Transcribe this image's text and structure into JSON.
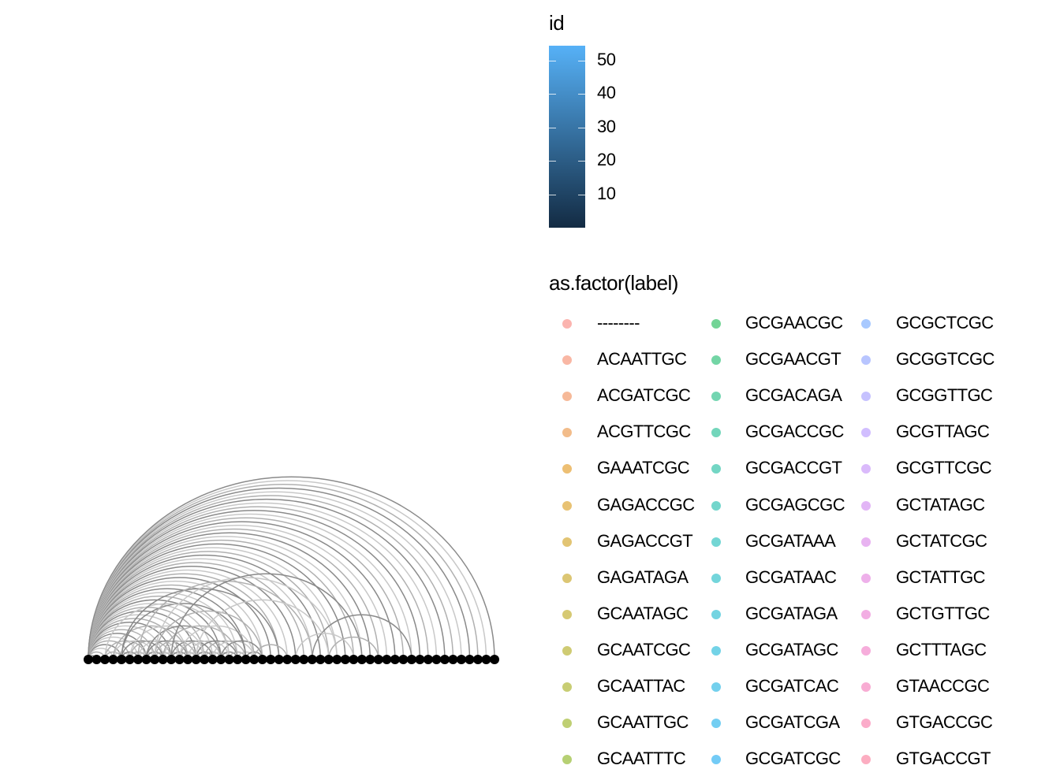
{
  "chart_data": {
    "type": "arc",
    "n_nodes": 50,
    "arcs": [
      [
        1,
        2
      ],
      [
        1,
        3
      ],
      [
        1,
        4
      ],
      [
        1,
        5
      ],
      [
        1,
        6
      ],
      [
        1,
        7
      ],
      [
        1,
        8
      ],
      [
        1,
        9
      ],
      [
        1,
        10
      ],
      [
        1,
        11
      ],
      [
        1,
        12
      ],
      [
        1,
        13
      ],
      [
        1,
        14
      ],
      [
        1,
        15
      ],
      [
        1,
        16
      ],
      [
        1,
        17
      ],
      [
        1,
        18
      ],
      [
        1,
        19
      ],
      [
        1,
        20
      ],
      [
        1,
        21
      ],
      [
        1,
        22
      ],
      [
        1,
        23
      ],
      [
        1,
        24
      ],
      [
        1,
        25
      ],
      [
        1,
        26
      ],
      [
        1,
        27
      ],
      [
        1,
        28
      ],
      [
        1,
        29
      ],
      [
        1,
        30
      ],
      [
        1,
        31
      ],
      [
        1,
        32
      ],
      [
        1,
        33
      ],
      [
        1,
        34
      ],
      [
        1,
        35
      ],
      [
        1,
        36
      ],
      [
        1,
        37
      ],
      [
        1,
        38
      ],
      [
        1,
        39
      ],
      [
        1,
        40
      ],
      [
        1,
        41
      ],
      [
        1,
        42
      ],
      [
        1,
        43
      ],
      [
        1,
        44
      ],
      [
        1,
        45
      ],
      [
        1,
        46
      ],
      [
        1,
        47
      ],
      [
        1,
        48
      ],
      [
        1,
        49
      ],
      [
        1,
        50
      ],
      [
        3,
        5
      ],
      [
        4,
        6
      ],
      [
        5,
        7
      ],
      [
        6,
        8
      ],
      [
        7,
        9
      ],
      [
        8,
        10
      ],
      [
        9,
        11
      ],
      [
        10,
        12
      ],
      [
        11,
        13
      ],
      [
        12,
        14
      ],
      [
        13,
        15
      ],
      [
        14,
        16
      ],
      [
        15,
        17
      ],
      [
        16,
        18
      ],
      [
        17,
        19
      ],
      [
        18,
        20
      ],
      [
        19,
        21
      ],
      [
        20,
        22
      ],
      [
        3,
        8
      ],
      [
        4,
        9
      ],
      [
        5,
        10
      ],
      [
        6,
        11
      ],
      [
        7,
        12
      ],
      [
        8,
        13
      ],
      [
        9,
        14
      ],
      [
        10,
        15
      ],
      [
        11,
        16
      ],
      [
        12,
        17
      ],
      [
        13,
        18
      ],
      [
        14,
        19
      ],
      [
        15,
        20
      ],
      [
        16,
        21
      ],
      [
        17,
        22
      ],
      [
        4,
        13
      ],
      [
        6,
        15
      ],
      [
        8,
        17
      ],
      [
        10,
        19
      ],
      [
        12,
        21
      ],
      [
        5,
        20
      ],
      [
        9,
        22
      ],
      [
        3,
        18
      ],
      [
        5,
        24
      ],
      [
        7,
        28
      ],
      [
        9,
        31
      ],
      [
        11,
        34
      ],
      [
        21,
        25
      ],
      [
        26,
        33
      ],
      [
        28,
        40
      ],
      [
        30,
        36
      ],
      [
        14,
        30
      ]
    ],
    "id_legend": {
      "title": "id",
      "breaks": [
        10,
        20,
        30,
        40,
        50
      ],
      "low": "#132b43",
      "high": "#56b1f7"
    },
    "label_legend": {
      "title": "as.factor(label)",
      "entries": [
        "--------",
        "ACAATTGC",
        "ACGATCGC",
        "ACGTTCGC",
        "GAAATCGC",
        "GAGACCGC",
        "GAGACCGT",
        "GAGATAGA",
        "GCAATAGC",
        "GCAATCGC",
        "GCAATTAC",
        "GCAATTGC",
        "GCAATTTC",
        "GCGAACGC",
        "GCGAACGT",
        "GCGACAGA",
        "GCGACCGC",
        "GCGACCGT",
        "GCGAGCGC",
        "GCGATAAA",
        "GCGATAAC",
        "GCGATAGA",
        "GCGATAGC",
        "GCGATCAC",
        "GCGATCGA",
        "GCGATCGC",
        "GCGCTCGC",
        "GCGGTCGC",
        "GCGGTTGC",
        "GCGTTAGC",
        "GCGTTCGC",
        "GCTATAGC",
        "GCTATCGC",
        "GCTATTGC",
        "GCTGTTGC",
        "GCTTTAGC",
        "GTAACCGC",
        "GTGACCGC",
        "GTGACCGT"
      ],
      "colors": [
        "#F8766D",
        "#F47C59",
        "#EE8043",
        "#E8852A",
        "#DF8A00",
        "#D58F00",
        "#CB9400",
        "#C09800",
        "#B49C00",
        "#A8A000",
        "#9AA400",
        "#8BA700",
        "#7AAA00",
        "#00B040",
        "#00B25B",
        "#00B371",
        "#00B483",
        "#00B593",
        "#00B5A2",
        "#00B4B0",
        "#00B3BD",
        "#00B1C9",
        "#00AED4",
        "#00AADE",
        "#00A6E7",
        "#00A1EF",
        "#619CFF",
        "#7E96FF",
        "#978FFF",
        "#AB88FF",
        "#BC81F8",
        "#CA7AEF",
        "#D675E5",
        "#E070D9",
        "#E86BCC",
        "#EE69BE",
        "#F367AF",
        "#F7679F",
        "#FA698E"
      ]
    }
  }
}
